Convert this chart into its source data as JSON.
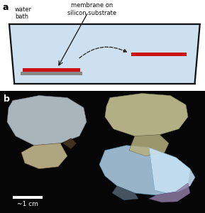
{
  "fig_width": 2.89,
  "fig_height": 3.0,
  "dpi": 100,
  "panel_a_label": "a",
  "panel_b_label": "b",
  "water_bath_label": "water\nbath",
  "membrane_label": "membrane on\nsilicon substrate",
  "scale_bar_label": "~1 cm",
  "water_color": "#cce0f0",
  "substrate_color": "#888888",
  "membrane_color": "#cc1111",
  "photo_bg": "#060606"
}
